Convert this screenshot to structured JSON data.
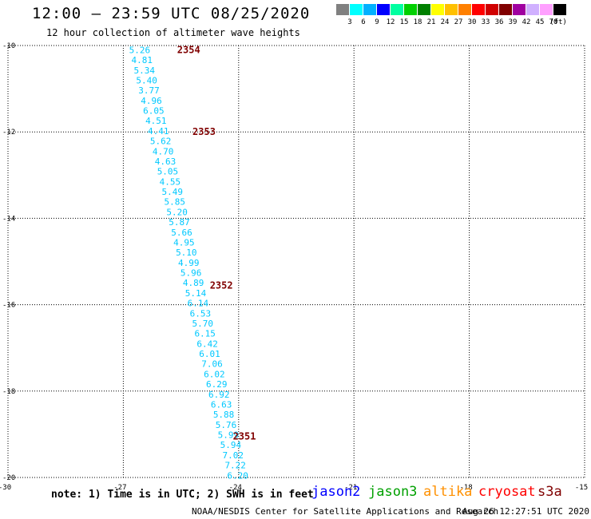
{
  "header": {
    "title": "12:00 – 23:59 UTC 08/25/2020",
    "subtitle": "12 hour collection of altimeter wave heights"
  },
  "legend": {
    "colors": [
      "#808080",
      "#00ffff",
      "#00b0ff",
      "#0000ff",
      "#00ffa0",
      "#00d000",
      "#008000",
      "#ffff00",
      "#ffc000",
      "#ff8000",
      "#ff0000",
      "#d00000",
      "#800000",
      "#a000a0",
      "#d0b0ff",
      "#ffa0ff",
      "#000000"
    ],
    "ticks": [
      "3",
      "6",
      "9",
      "12",
      "15",
      "18",
      "21",
      "24",
      "27",
      "30",
      "33",
      "36",
      "39",
      "42",
      "45",
      "70"
    ],
    "unit": "(ft)"
  },
  "map": {
    "x_axis_labels": [
      "-30",
      "-27",
      "-24",
      "-21",
      "-18",
      "-15"
    ],
    "y_axis_labels": [
      "-10",
      "-12",
      "-14",
      "-16",
      "-18",
      "-20"
    ],
    "x_ticks": [
      -30,
      -27,
      -24,
      -21,
      -18,
      -15
    ],
    "y_ticks": [
      -10,
      -12,
      -14,
      -16,
      -18,
      -20
    ],
    "lon_range": [
      -30,
      -15
    ],
    "lat_range": [
      -20,
      -10
    ],
    "grid": "dotted",
    "track_color": "#00c8ff",
    "time_color": "#800000",
    "heights": [
      "5.26",
      "4.81",
      "5.34",
      "5.40",
      "3.77",
      "4.96",
      "6.05",
      "4.51",
      "4.41",
      "5.62",
      "4.70",
      "4.63",
      "5.05",
      "4.55",
      "5.49",
      "5.85",
      "5.20",
      "5.87",
      "5.66",
      "4.95",
      "5.10",
      "4.99",
      "5.96",
      "4.89",
      "5.14",
      "6.14",
      "6.53",
      "5.70",
      "6.15",
      "6.42",
      "6.01",
      "7.06",
      "6.02",
      "6.29",
      "6.92",
      "6.63",
      "5.88",
      "5.76",
      "5.99",
      "5.94",
      "7.02",
      "7.22",
      "6.20"
    ],
    "heights_lon_start": -26.85,
    "heights_lon_end": -24.3,
    "heights_lat_start": -10.1,
    "heights_lat_end": -19.95,
    "time_labels": [
      {
        "text": "2354",
        "lat": -10.1,
        "lon": -25.6
      },
      {
        "text": "2353",
        "lat": -12.0,
        "lon": -25.2
      },
      {
        "text": "2352",
        "lat": -15.55,
        "lon": -24.75
      },
      {
        "text": "2351",
        "lat": -19.05,
        "lon": -24.15
      }
    ]
  },
  "footer": {
    "note": "note:  1) Time is in UTC; 2) SWH is in feet",
    "satellites": [
      {
        "name": "jason2",
        "color": "#0000ff"
      },
      {
        "name": "jason3",
        "color": "#00a000"
      },
      {
        "name": "altika",
        "color": "#ff9000"
      },
      {
        "name": "cryosat",
        "color": "#ff0000"
      },
      {
        "name": "s3a",
        "color": "#800000"
      }
    ],
    "credit": "NOAA/NESDIS Center for Satellite Applications and Research",
    "timestamp": "Aug 26 12:27:51 UTC 2020"
  }
}
